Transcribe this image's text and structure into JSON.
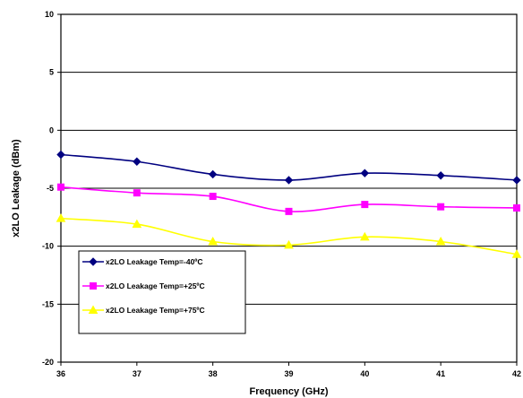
{
  "chart_data": {
    "type": "line",
    "title": "",
    "xlabel": "Frequency (GHz)",
    "ylabel": "x2LO Leakage (dBm)",
    "xlim": [
      36,
      42
    ],
    "ylim": [
      -20,
      10
    ],
    "xticks": [
      36,
      37,
      38,
      39,
      40,
      41,
      42
    ],
    "yticks": [
      -20,
      -15,
      -10,
      -5,
      0,
      5,
      10
    ],
    "grid": "horizontal",
    "legend_position": "bottom-left",
    "series": [
      {
        "name": "x2LO Leakage Temp=-40ºC",
        "color": "#000080",
        "marker": "diamond",
        "x": [
          36,
          37,
          38,
          39,
          40,
          41,
          42
        ],
        "y": [
          -2.1,
          -2.7,
          -3.8,
          -4.3,
          -3.7,
          -3.9,
          -4.3
        ]
      },
      {
        "name": "x2LO Leakage Temp=+25ºC",
        "color": "#ff00ff",
        "marker": "square",
        "x": [
          36,
          37,
          38,
          39,
          40,
          41,
          42
        ],
        "y": [
          -4.9,
          -5.4,
          -5.7,
          -7.0,
          -6.4,
          -6.6,
          -6.7
        ]
      },
      {
        "name": "x2LO Leakage Temp=+75ºC",
        "color": "#ffff00",
        "marker": "triangle",
        "x": [
          36,
          37,
          38,
          39,
          40,
          41,
          42
        ],
        "y": [
          -7.6,
          -8.1,
          -9.6,
          -9.9,
          -9.2,
          -9.6,
          -10.7
        ]
      }
    ]
  }
}
